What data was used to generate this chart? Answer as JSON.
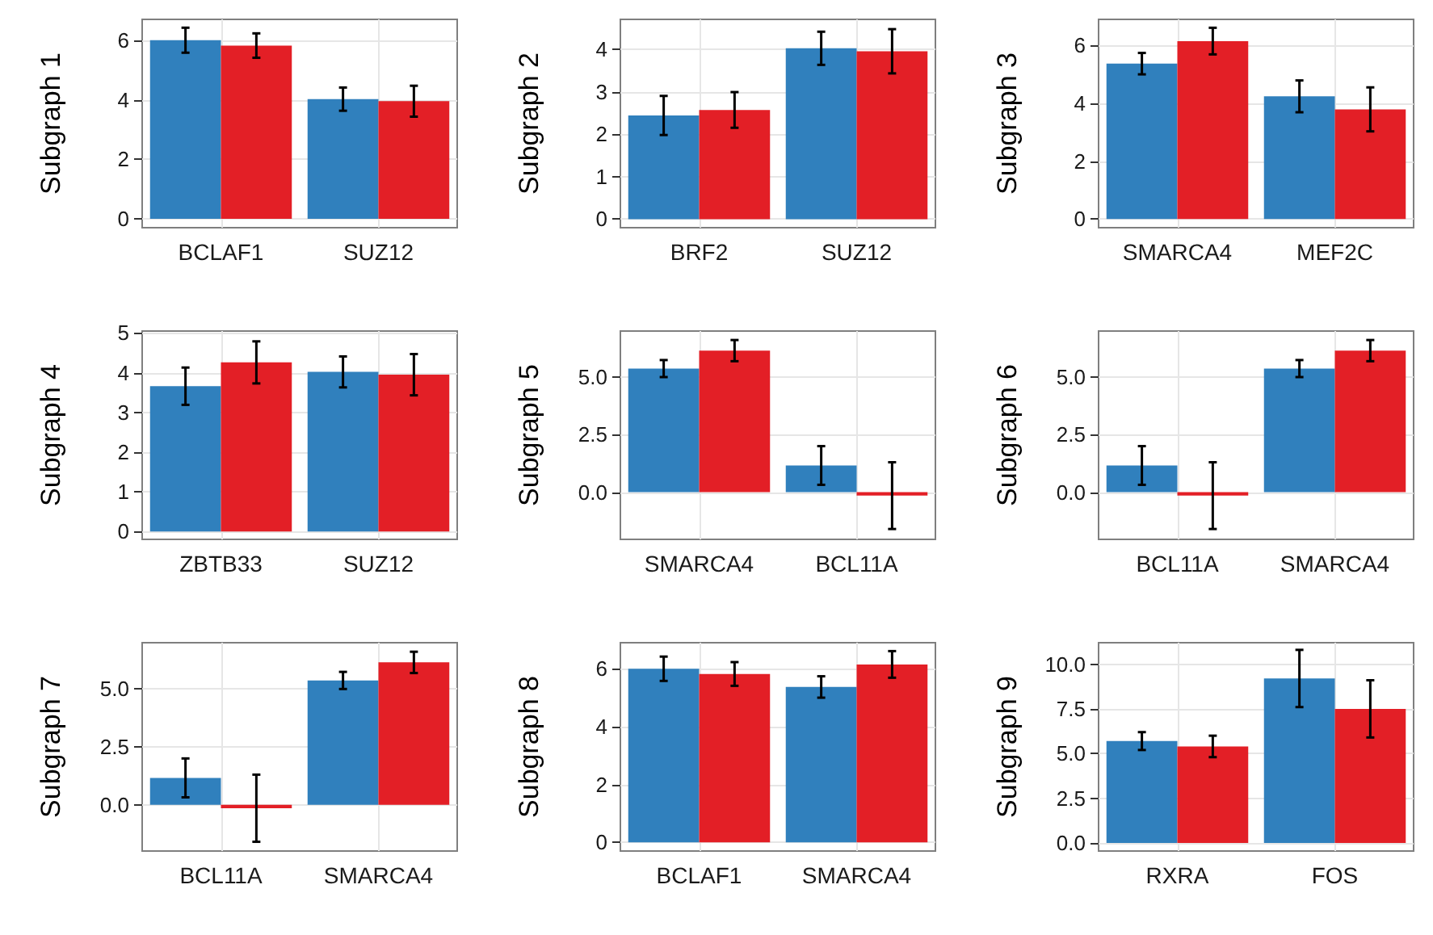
{
  "chart_data": [
    {
      "type": "bar",
      "ylabel": "Subgraph 1",
      "categories": [
        "BCLAF1",
        "SUZ12"
      ],
      "ylim": [
        -0.3,
        6.7
      ],
      "yticks": [
        0,
        2,
        4,
        6
      ],
      "grid": true,
      "series": [
        {
          "color": "#3080bd",
          "values": [
            6.0,
            4.02
          ],
          "errors": [
            0.42,
            0.39
          ]
        },
        {
          "color": "#e31f26",
          "values": [
            5.82,
            3.95
          ],
          "errors": [
            0.41,
            0.52
          ]
        }
      ]
    },
    {
      "type": "bar",
      "ylabel": "Subgraph 2",
      "categories": [
        "BRF2",
        "SUZ12"
      ],
      "ylim": [
        -0.2,
        4.7
      ],
      "yticks": [
        0,
        1,
        2,
        3,
        4
      ],
      "grid": true,
      "series": [
        {
          "color": "#3080bd",
          "values": [
            2.44,
            4.02
          ],
          "errors": [
            0.46,
            0.39
          ]
        },
        {
          "color": "#e31f26",
          "values": [
            2.57,
            3.95
          ],
          "errors": [
            0.42,
            0.52
          ]
        }
      ]
    },
    {
      "type": "bar",
      "ylabel": "Subgraph 3",
      "categories": [
        "SMARCA4",
        "MEF2C"
      ],
      "ylim": [
        -0.3,
        6.9
      ],
      "yticks": [
        0,
        2,
        4,
        6
      ],
      "grid": true,
      "series": [
        {
          "color": "#3080bd",
          "values": [
            5.37,
            4.24
          ],
          "errors": [
            0.37,
            0.55
          ]
        },
        {
          "color": "#e31f26",
          "values": [
            6.15,
            3.79
          ],
          "errors": [
            0.46,
            0.76
          ]
        }
      ]
    },
    {
      "type": "bar",
      "ylabel": "Subgraph 4",
      "categories": [
        "ZBTB33",
        "SUZ12"
      ],
      "ylim": [
        -0.2,
        5.05
      ],
      "yticks": [
        0,
        1,
        2,
        3,
        4,
        5
      ],
      "grid": true,
      "series": [
        {
          "color": "#3080bd",
          "values": [
            3.66,
            4.02
          ],
          "errors": [
            0.47,
            0.39
          ]
        },
        {
          "color": "#e31f26",
          "values": [
            4.26,
            3.95
          ],
          "errors": [
            0.53,
            0.52
          ]
        }
      ]
    },
    {
      "type": "bar",
      "ylabel": "Subgraph 5",
      "categories": [
        "SMARCA4",
        "BCL11A"
      ],
      "ylim": [
        -2.05,
        7.0
      ],
      "yticks": [
        {
          "value": 0,
          "label": "0.0"
        },
        {
          "value": 2.5,
          "label": "2.5"
        },
        {
          "value": 5,
          "label": "5.0"
        }
      ],
      "grid": true,
      "series": [
        {
          "color": "#3080bd",
          "values": [
            5.37,
            1.16
          ],
          "errors": [
            0.37,
            0.84
          ]
        },
        {
          "color": "#e31f26",
          "values": [
            6.15,
            -0.15
          ],
          "errors": [
            0.46,
            1.45
          ]
        }
      ]
    },
    {
      "type": "bar",
      "ylabel": "Subgraph 6",
      "categories": [
        "BCL11A",
        "SMARCA4"
      ],
      "ylim": [
        -2.05,
        7.0
      ],
      "yticks": [
        {
          "value": 0,
          "label": "0.0"
        },
        {
          "value": 2.5,
          "label": "2.5"
        },
        {
          "value": 5,
          "label": "5.0"
        }
      ],
      "grid": true,
      "series": [
        {
          "color": "#3080bd",
          "values": [
            1.16,
            5.37
          ],
          "errors": [
            0.84,
            0.37
          ]
        },
        {
          "color": "#e31f26",
          "values": [
            -0.15,
            6.15
          ],
          "errors": [
            1.45,
            0.46
          ]
        }
      ]
    },
    {
      "type": "bar",
      "ylabel": "Subgraph 7",
      "categories": [
        "BCL11A",
        "SMARCA4"
      ],
      "ylim": [
        -2.0,
        7.0
      ],
      "yticks": [
        {
          "value": 0,
          "label": "0.0"
        },
        {
          "value": 2.5,
          "label": "2.5"
        },
        {
          "value": 5,
          "label": "5.0"
        }
      ],
      "grid": true,
      "series": [
        {
          "color": "#3080bd",
          "values": [
            1.16,
            5.37
          ],
          "errors": [
            0.84,
            0.37
          ]
        },
        {
          "color": "#e31f26",
          "values": [
            -0.15,
            6.15
          ],
          "errors": [
            1.45,
            0.46
          ]
        }
      ]
    },
    {
      "type": "bar",
      "ylabel": "Subgraph 8",
      "categories": [
        "BCLAF1",
        "SMARCA4"
      ],
      "ylim": [
        -0.3,
        6.9
      ],
      "yticks": [
        0,
        2,
        4,
        6
      ],
      "grid": true,
      "series": [
        {
          "color": "#3080bd",
          "values": [
            6.0,
            5.37
          ],
          "errors": [
            0.42,
            0.37
          ]
        },
        {
          "color": "#e31f26",
          "values": [
            5.82,
            6.15
          ],
          "errors": [
            0.41,
            0.46
          ]
        }
      ]
    },
    {
      "type": "bar",
      "ylabel": "Subgraph 9",
      "categories": [
        "RXRA",
        "FOS"
      ],
      "ylim": [
        -0.45,
        11.2
      ],
      "yticks": [
        {
          "value": 0,
          "label": "0.0"
        },
        {
          "value": 2.5,
          "label": "2.5"
        },
        {
          "value": 5,
          "label": "5.0"
        },
        {
          "value": 7.5,
          "label": "7.5"
        },
        {
          "value": 10,
          "label": "10.0"
        }
      ],
      "grid": true,
      "series": [
        {
          "color": "#3080bd",
          "values": [
            5.7,
            9.2
          ],
          "errors": [
            0.5,
            1.6
          ]
        },
        {
          "color": "#e31f26",
          "values": [
            5.4,
            7.5
          ],
          "errors": [
            0.6,
            1.6
          ]
        }
      ]
    }
  ]
}
